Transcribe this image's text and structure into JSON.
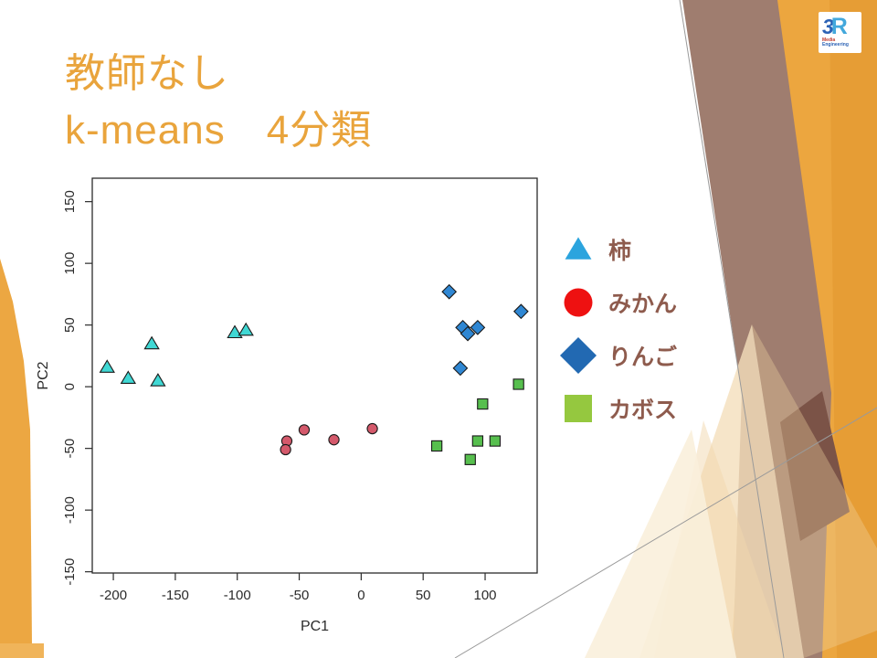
{
  "slide": {
    "title_line1": "教師なし",
    "title_line2": "k-means　4分類"
  },
  "logo": {
    "text_3": "3",
    "text_R": "R",
    "sub_line1": "Media",
    "sub_line2": "Engineering"
  },
  "theme": {
    "title_color": "#E9A43C",
    "accent_orange": "#ECA63F",
    "accent_orange_dark": "#E2952E",
    "accent_brown": "#9F7D6F",
    "accent_brown_dark": "#7B5347",
    "accent_cream": "#F4DFBB",
    "legend_text_color": "#8E5B4D"
  },
  "chart_data": {
    "type": "scatter",
    "title": "",
    "xlabel": "PC1",
    "ylabel": "PC2",
    "xlim": [
      -217,
      142
    ],
    "ylim": [
      -151,
      169
    ],
    "xticks": [
      -200,
      -150,
      -100,
      -50,
      0,
      50,
      100
    ],
    "yticks": [
      -150,
      -100,
      -50,
      0,
      50,
      100,
      150
    ],
    "grid": false,
    "legend_position": "right",
    "series": [
      {
        "name": "柿",
        "marker": "triangle",
        "plot_color": "#40D8D4",
        "legend_color": "#2BA4DE",
        "points": [
          [
            -205,
            16
          ],
          [
            -188,
            7
          ],
          [
            -164,
            5
          ],
          [
            -169,
            35
          ],
          [
            -102,
            44
          ],
          [
            -93,
            46
          ]
        ]
      },
      {
        "name": "みかん",
        "marker": "circle",
        "plot_color": "#D4596B",
        "legend_color": "#EE1111",
        "points": [
          [
            -60,
            -44
          ],
          [
            -61,
            -51
          ],
          [
            -46,
            -35
          ],
          [
            -22,
            -43
          ],
          [
            9,
            -34
          ]
        ]
      },
      {
        "name": "りんご",
        "marker": "diamond",
        "plot_color": "#2F87D3",
        "legend_color": "#2269B2",
        "points": [
          [
            71,
            77
          ],
          [
            129,
            61
          ],
          [
            82,
            48
          ],
          [
            86,
            43
          ],
          [
            94,
            48
          ],
          [
            80,
            15
          ]
        ]
      },
      {
        "name": "カボス",
        "marker": "square",
        "plot_color": "#57BF4E",
        "legend_color": "#95C83F",
        "points": [
          [
            127,
            2
          ],
          [
            98,
            -14
          ],
          [
            61,
            -48
          ],
          [
            94,
            -44
          ],
          [
            108,
            -44
          ],
          [
            88,
            -59
          ]
        ]
      }
    ]
  }
}
